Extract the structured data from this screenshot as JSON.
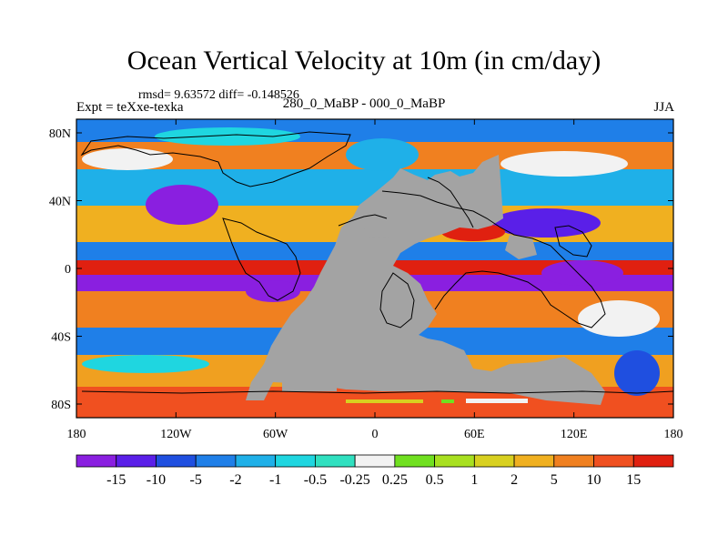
{
  "title": "Ocean Vertical Velocity at 10m (in cm/day)",
  "stats": "rmsd= 9.63572 diff= -0.148526",
  "experiment": "Expt = teXxe-texka",
  "comparison": "280_0_MaBP - 000_0_MaBP",
  "season": "JJA",
  "lat_ticks": [
    "80N",
    "40N",
    "0",
    "40S",
    "80S"
  ],
  "lon_ticks": [
    "180",
    "120W",
    "60W",
    "0",
    "60E",
    "120E",
    "180"
  ],
  "colorbar": {
    "labels": [
      "-15",
      "-10",
      "-5",
      "-2",
      "-1",
      "-0.5",
      "-0.25",
      "0.25",
      "0.5",
      "1",
      "2",
      "5",
      "10",
      "15"
    ],
    "colors": [
      "#8a1fe0",
      "#5a1fe8",
      "#1f4fe0",
      "#1f7fe8",
      "#1fb0e8",
      "#1fd6e0",
      "#30e0c0",
      "#f2f2f2",
      "#70e020",
      "#a8e020",
      "#d8d020",
      "#f0b020",
      "#f08020",
      "#f05020",
      "#e02010"
    ]
  },
  "colors": {
    "land": "#a3a3a3",
    "coast": "#000000"
  }
}
